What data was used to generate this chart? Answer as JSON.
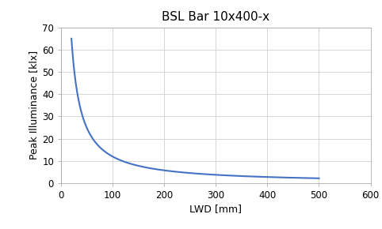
{
  "title": "BSL Bar 10x400-x",
  "xlabel": "LWD [mm]",
  "ylabel": "Peak Illuminance [klx]",
  "xlim": [
    0,
    600
  ],
  "ylim": [
    0,
    70
  ],
  "xticks": [
    0,
    100,
    200,
    300,
    400,
    500,
    600
  ],
  "yticks": [
    0,
    10,
    20,
    30,
    40,
    50,
    60,
    70
  ],
  "line_color": "#4472c4",
  "line_width": 1.5,
  "x_start": 20,
  "x_end": 500,
  "y_at_x_start": 65,
  "y_at_x_end": 2.2,
  "background_color": "#ffffff",
  "grid_color": "#d0d0d0",
  "title_fontsize": 11,
  "label_fontsize": 9,
  "tick_fontsize": 8.5
}
